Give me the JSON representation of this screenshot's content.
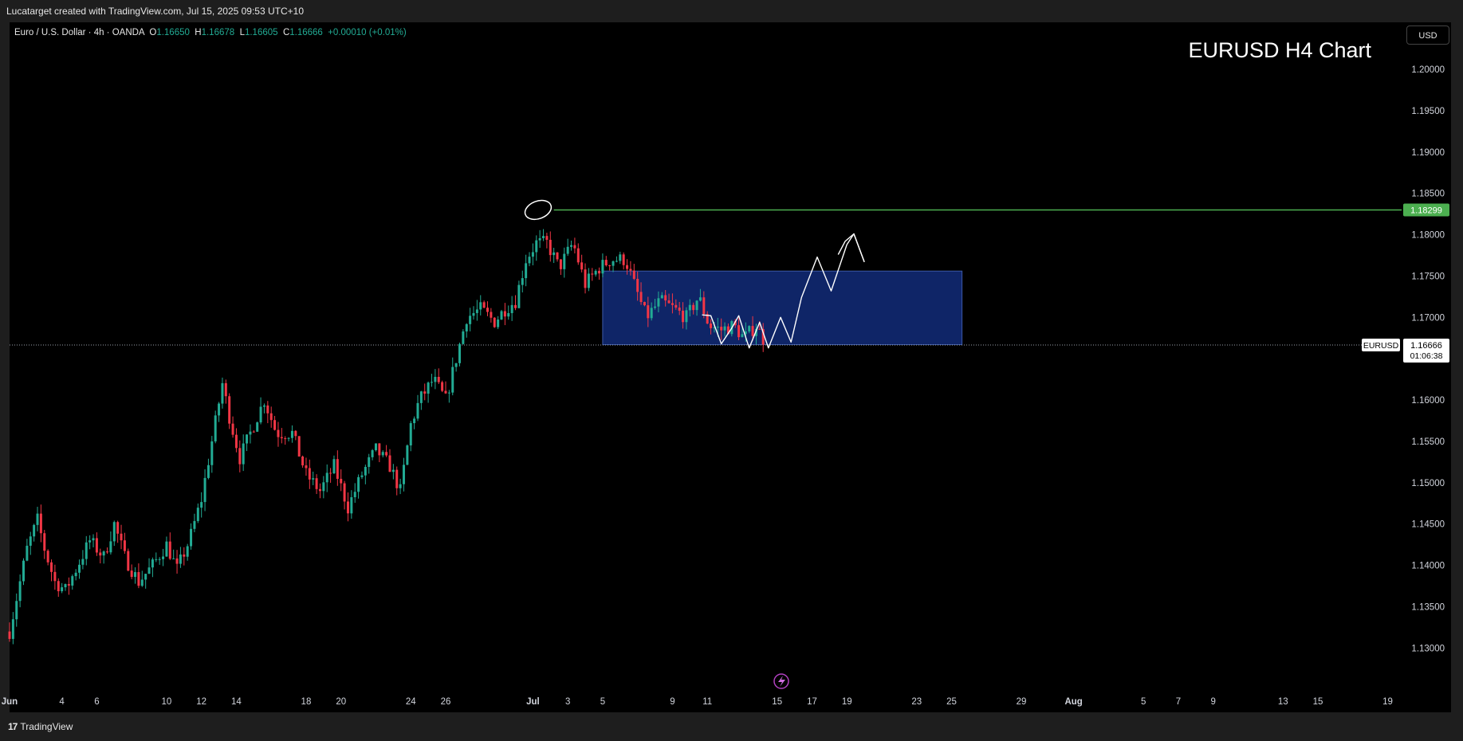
{
  "header": {
    "attribution": "Lucatarget created with TradingView.com, Jul 15, 2025 09:53 UTC+10"
  },
  "legend": {
    "symbol": "Euro / U.S. Dollar · 4h · OANDA",
    "o_label": "O",
    "o_value": "1.16650",
    "h_label": "H",
    "h_value": "1.16678",
    "l_label": "L",
    "l_value": "1.16605",
    "c_label": "C",
    "c_value": "1.16666",
    "change": "+0.00010 (+0.01%)"
  },
  "currency_button": "USD",
  "footer": {
    "brand": "TradingView",
    "mark": "17"
  },
  "colors": {
    "up": "#22ab94",
    "down": "#f23645",
    "zone": "#0f2567",
    "resistance": "#4caf50",
    "background": "#000000"
  },
  "chart_data": {
    "type": "candlestick",
    "title": "EURUSD H4 Chart",
    "symbol": "EURUSD",
    "timeframe": "4h",
    "ylim": [
      1.1255,
      1.2055
    ],
    "y_ticks": [
      "1.20000",
      "1.19500",
      "1.19000",
      "1.18500",
      "1.18000",
      "1.17500",
      "1.17000",
      "1.16500",
      "1.16000",
      "1.15500",
      "1.15000",
      "1.14500",
      "1.14000",
      "1.13500",
      "1.13000"
    ],
    "x_ticks": [
      {
        "label": "Jun",
        "day": 0
      },
      {
        "label": "4",
        "day": 3
      },
      {
        "label": "6",
        "day": 5
      },
      {
        "label": "10",
        "day": 9
      },
      {
        "label": "12",
        "day": 11
      },
      {
        "label": "14",
        "day": 13
      },
      {
        "label": "18",
        "day": 17
      },
      {
        "label": "20",
        "day": 19
      },
      {
        "label": "24",
        "day": 23
      },
      {
        "label": "26",
        "day": 25
      },
      {
        "label": "Jul",
        "day": 30
      },
      {
        "label": "3",
        "day": 32
      },
      {
        "label": "5",
        "day": 34
      },
      {
        "label": "9",
        "day": 38
      },
      {
        "label": "11",
        "day": 40
      },
      {
        "label": "15",
        "day": 44
      },
      {
        "label": "17",
        "day": 46
      },
      {
        "label": "19",
        "day": 48
      },
      {
        "label": "23",
        "day": 52
      },
      {
        "label": "25",
        "day": 54
      },
      {
        "label": "29",
        "day": 58
      },
      {
        "label": "Aug",
        "day": 61
      },
      {
        "label": "5",
        "day": 65
      },
      {
        "label": "7",
        "day": 67
      },
      {
        "label": "9",
        "day": 69
      },
      {
        "label": "13",
        "day": 73
      },
      {
        "label": "15",
        "day": 75
      },
      {
        "label": "19",
        "day": 79
      }
    ],
    "x_range_days": [
      0,
      79.8
    ],
    "price_path": [
      [
        0,
        1.132
      ],
      [
        0.3,
        1.135
      ],
      [
        1.0,
        1.142
      ],
      [
        1.6,
        1.1455
      ],
      [
        2.0,
        1.142
      ],
      [
        2.6,
        1.138
      ],
      [
        3.2,
        1.137
      ],
      [
        3.8,
        1.1395
      ],
      [
        4.6,
        1.143
      ],
      [
        5.4,
        1.141
      ],
      [
        6.0,
        1.145
      ],
      [
        6.6,
        1.141
      ],
      [
        7.4,
        1.138
      ],
      [
        8.2,
        1.14
      ],
      [
        9.0,
        1.1425
      ],
      [
        9.6,
        1.1395
      ],
      [
        10.3,
        1.143
      ],
      [
        11.0,
        1.148
      ],
      [
        11.6,
        1.155
      ],
      [
        12.2,
        1.162
      ],
      [
        12.6,
        1.158
      ],
      [
        13.2,
        1.153
      ],
      [
        13.8,
        1.156
      ],
      [
        14.6,
        1.16
      ],
      [
        15.3,
        1.156
      ],
      [
        16.2,
        1.156
      ],
      [
        17.0,
        1.151
      ],
      [
        17.8,
        1.149
      ],
      [
        18.6,
        1.152
      ],
      [
        19.4,
        1.147
      ],
      [
        20.2,
        1.151
      ],
      [
        21.0,
        1.154
      ],
      [
        21.8,
        1.152
      ],
      [
        22.4,
        1.149
      ],
      [
        23.0,
        1.157
      ],
      [
        23.5,
        1.16
      ],
      [
        24.3,
        1.1625
      ],
      [
        25.0,
        1.16
      ],
      [
        25.6,
        1.165
      ],
      [
        26.2,
        1.17
      ],
      [
        27.0,
        1.171
      ],
      [
        27.8,
        1.1695
      ],
      [
        28.4,
        1.171
      ],
      [
        29.0,
        1.172
      ],
      [
        29.6,
        1.177
      ],
      [
        30.2,
        1.179
      ],
      [
        30.8,
        1.179
      ],
      [
        31.5,
        1.176
      ],
      [
        32.3,
        1.179
      ],
      [
        33.0,
        1.174
      ],
      [
        33.8,
        1.176
      ],
      [
        34.5,
        1.177
      ],
      [
        35.3,
        1.177
      ],
      [
        35.8,
        1.174
      ],
      [
        36.5,
        1.17
      ],
      [
        37.3,
        1.172
      ],
      [
        38.1,
        1.171
      ],
      [
        38.8,
        1.17
      ],
      [
        39.5,
        1.1725
      ],
      [
        40.1,
        1.169
      ],
      [
        40.8,
        1.1685
      ],
      [
        41.5,
        1.169
      ],
      [
        42.1,
        1.1675
      ],
      [
        42.8,
        1.169
      ],
      [
        43.4,
        1.1666
      ]
    ],
    "resistance": {
      "price": 1.18299,
      "label": "1.18299",
      "from_day": 31.2
    },
    "current_price": {
      "label": "EURUSD",
      "price": "1.16666",
      "countdown": "01:06:38",
      "value": 1.16666
    },
    "zone": {
      "from_day": 34.0,
      "to_day": 54.6,
      "top": 1.1756,
      "bottom": 1.1667
    },
    "projection_path": [
      [
        39.7,
        1.1703
      ],
      [
        40.2,
        1.1702
      ],
      [
        40.8,
        1.1668
      ],
      [
        41.4,
        1.1687
      ],
      [
        41.8,
        1.1702
      ],
      [
        42.4,
        1.1663
      ],
      [
        43.0,
        1.1694
      ],
      [
        43.5,
        1.1663
      ],
      [
        44.2,
        1.17
      ],
      [
        44.8,
        1.167
      ],
      [
        45.4,
        1.1724
      ],
      [
        46.3,
        1.1773
      ],
      [
        47.1,
        1.1732
      ],
      [
        48.0,
        1.1788
      ],
      [
        48.4,
        1.1801
      ],
      [
        49.0,
        1.1767
      ]
    ],
    "secondary_path": [
      [
        47.5,
        1.1776
      ],
      [
        47.9,
        1.1792
      ],
      [
        48.4,
        1.1801
      ],
      [
        49.0,
        1.1767
      ]
    ],
    "high_marker": {
      "day": 30.3,
      "price": 1.183
    }
  }
}
